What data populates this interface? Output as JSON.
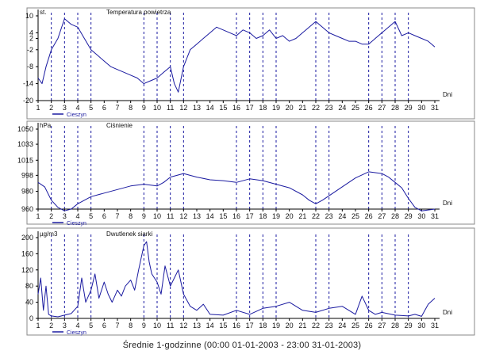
{
  "footer_caption": "Średnie 1-godzinne (00:00 01-01-2003 - 23:00 31-01-2003)",
  "colors": {
    "line": "#1a1aa0",
    "frame": "#000000",
    "dashed": "#1a1aa0",
    "panel_border": "#888888"
  },
  "chart_data": [
    {
      "type": "line",
      "title": "Temperatura powietrza",
      "unit": "st.",
      "xlabel": "Dni",
      "station": "Cieszyn",
      "ylim": [
        -20,
        10
      ],
      "yticks": [
        "10",
        "4",
        "2",
        "-2",
        "-8",
        "-14",
        "-20"
      ],
      "ytick_values": [
        10,
        4,
        2,
        -2,
        -8,
        -14,
        -20
      ],
      "xticks": [
        "1",
        "2",
        "3",
        "4",
        "5",
        "6",
        "7",
        "8",
        "9",
        "10",
        "11",
        "12",
        "13",
        "14",
        "15",
        "16",
        "17",
        "18",
        "19",
        "20",
        "21",
        "22",
        "23",
        "24",
        "25",
        "26",
        "27",
        "28",
        "29",
        "30",
        "31"
      ],
      "dashed_days": [
        2,
        3,
        4,
        5,
        9,
        10,
        11,
        12,
        16,
        17,
        18,
        19,
        22,
        23,
        26,
        27,
        28,
        29
      ],
      "series": [
        {
          "x": [
            1,
            1.3,
            1.6,
            2,
            2.5,
            3,
            3.5,
            4,
            4.5,
            5,
            5.5,
            6,
            6.5,
            7,
            7.5,
            8,
            8.5,
            9,
            9.5,
            10,
            10.5,
            11,
            11.3,
            11.6,
            12,
            12.5,
            13,
            13.5,
            14,
            14.5,
            15,
            15.5,
            16,
            16.5,
            17,
            17.5,
            18,
            18.5,
            19,
            19.5,
            20,
            20.5,
            21,
            21.5,
            22,
            22.5,
            23,
            23.5,
            24,
            24.5,
            25,
            25.5,
            26,
            26.5,
            27,
            27.5,
            28,
            28.5,
            29,
            29.5,
            30,
            30.5,
            31
          ],
          "values": [
            -12,
            -14,
            -8,
            -2,
            2,
            9,
            7,
            6,
            2,
            -2,
            -4,
            -6,
            -8,
            -9,
            -10,
            -11,
            -12,
            -14,
            -13,
            -12,
            -10,
            -8,
            -14,
            -17,
            -8,
            -2,
            0,
            2,
            4,
            6,
            5,
            4,
            3,
            5,
            4,
            2,
            3,
            5,
            2,
            3,
            1,
            2,
            4,
            6,
            8,
            6,
            4,
            3,
            2,
            1,
            1,
            0,
            0,
            2,
            4,
            6,
            8,
            3,
            4,
            3,
            2,
            1,
            -1
          ]
        }
      ]
    },
    {
      "type": "line",
      "title": "Ciśnienie",
      "unit": "hPa",
      "xlabel": "Dni",
      "station": "Cieszyn",
      "ylim": [
        960,
        1050
      ],
      "yticks": [
        "1050",
        "1033",
        "1015",
        "998",
        "980",
        "960"
      ],
      "ytick_values": [
        1050,
        1033,
        1015,
        998,
        980,
        960
      ],
      "xticks": [
        "1",
        "2",
        "3",
        "4",
        "5",
        "6",
        "7",
        "8",
        "9",
        "10",
        "11",
        "12",
        "13",
        "14",
        "15",
        "16",
        "17",
        "18",
        "19",
        "20",
        "21",
        "22",
        "23",
        "24",
        "25",
        "26",
        "27",
        "28",
        "29",
        "30",
        "31"
      ],
      "dashed_days": [
        2,
        3,
        4,
        5,
        9,
        10,
        11,
        12,
        16,
        17,
        18,
        19,
        22,
        23,
        26,
        27,
        28,
        29
      ],
      "series": [
        {
          "x": [
            1,
            1.5,
            2,
            2.5,
            3,
            3.5,
            4,
            5,
            6,
            7,
            8,
            9,
            10,
            10.5,
            11,
            12,
            13,
            14,
            15,
            16,
            17,
            18,
            19,
            20,
            21,
            21.5,
            22,
            22.5,
            23,
            24,
            25,
            26,
            27,
            27.5,
            28,
            28.5,
            29,
            29.5,
            30,
            31
          ],
          "values": [
            990,
            985,
            970,
            962,
            958,
            960,
            966,
            974,
            978,
            982,
            986,
            988,
            986,
            990,
            996,
            1000,
            996,
            993,
            992,
            990,
            994,
            992,
            988,
            984,
            976,
            970,
            966,
            970,
            975,
            985,
            995,
            1002,
            1000,
            996,
            990,
            984,
            972,
            962,
            958,
            960
          ]
        }
      ]
    },
    {
      "type": "line",
      "title": "Dwutlenek siarki",
      "unit": "µg/m3",
      "xlabel": "Dni",
      "station": "Cieszyn",
      "ylim": [
        0,
        200
      ],
      "yticks": [
        "200",
        "160",
        "120",
        "80",
        "40",
        "0"
      ],
      "ytick_values": [
        200,
        160,
        120,
        80,
        40,
        0
      ],
      "xticks": [
        "1",
        "2",
        "3",
        "4",
        "5",
        "6",
        "7",
        "8",
        "9",
        "10",
        "11",
        "12",
        "13",
        "14",
        "15",
        "16",
        "17",
        "18",
        "19",
        "20",
        "21",
        "22",
        "23",
        "24",
        "25",
        "26",
        "27",
        "28",
        "29",
        "30",
        "31"
      ],
      "dashed_days": [
        2,
        3,
        4,
        5,
        9,
        10,
        11,
        12,
        16,
        17,
        18,
        19,
        22,
        23,
        26,
        27,
        28,
        29
      ],
      "series": [
        {
          "x": [
            1,
            1.2,
            1.4,
            1.6,
            1.8,
            2,
            2.5,
            3,
            3.5,
            4,
            4.3,
            4.6,
            5,
            5.3,
            5.6,
            6,
            6.3,
            6.6,
            7,
            7.3,
            7.6,
            8,
            8.3,
            8.6,
            9,
            9.2,
            9.4,
            9.6,
            10,
            10.3,
            10.6,
            11,
            11.3,
            11.6,
            12,
            12.5,
            13,
            13.5,
            14,
            15,
            16,
            17,
            18,
            19,
            20,
            21,
            22,
            23,
            24,
            25,
            25.5,
            26,
            26.5,
            27,
            28,
            29,
            29.5,
            30,
            30.5,
            31
          ],
          "values": [
            60,
            100,
            20,
            80,
            10,
            6,
            4,
            8,
            12,
            30,
            100,
            40,
            70,
            110,
            50,
            90,
            60,
            40,
            70,
            55,
            80,
            95,
            70,
            120,
            180,
            190,
            140,
            110,
            90,
            60,
            130,
            80,
            100,
            120,
            60,
            30,
            20,
            35,
            10,
            8,
            20,
            10,
            25,
            30,
            40,
            20,
            15,
            25,
            30,
            10,
            55,
            20,
            10,
            15,
            8,
            6,
            10,
            5,
            35,
            50
          ]
        }
      ]
    }
  ]
}
